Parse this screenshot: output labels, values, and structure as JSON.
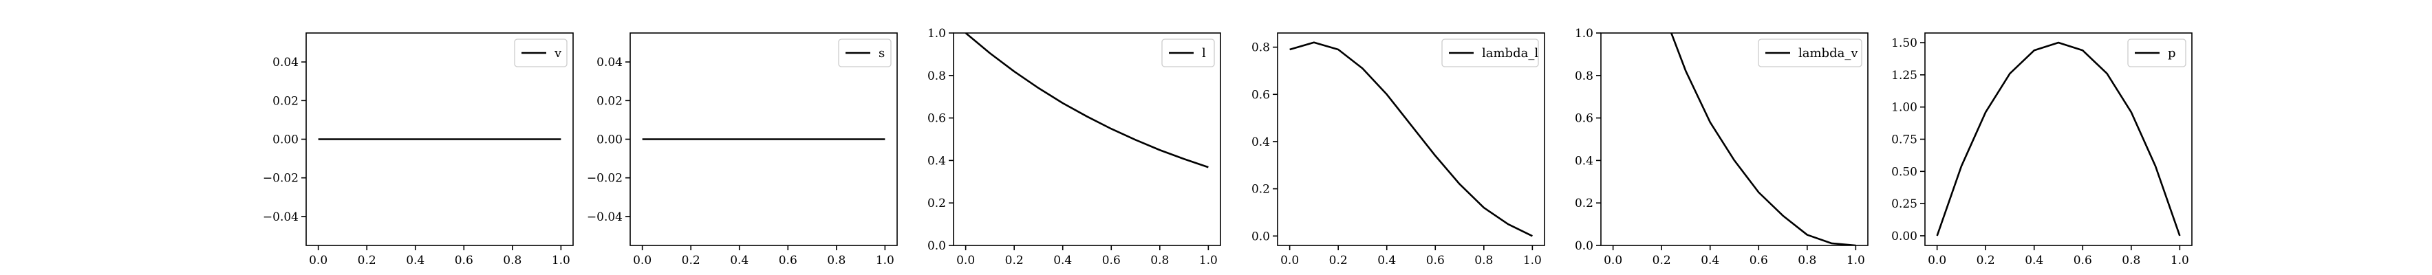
{
  "figure": {
    "line_color": "#000000"
  },
  "chart_data": [
    {
      "type": "line",
      "xlim": [
        -0.05,
        1.05
      ],
      "ylim": [
        -0.055,
        0.055
      ],
      "xticks": [
        0.0,
        0.2,
        0.4,
        0.6,
        0.8,
        1.0
      ],
      "xtick_labels": [
        "0.0",
        "0.2",
        "0.4",
        "0.6",
        "0.8",
        "1.0"
      ],
      "yticks": [
        -0.04,
        -0.02,
        0.0,
        0.02,
        0.04
      ],
      "ytick_labels": [
        "−0.04",
        "−0.02",
        "0.00",
        "0.02",
        "0.04"
      ],
      "legend": "top-right",
      "series": [
        {
          "name": "v",
          "x": [
            0.0,
            0.2,
            0.4,
            0.6,
            0.8,
            1.0
          ],
          "y": [
            0.0,
            0.0,
            0.0,
            0.0,
            0.0,
            0.0
          ]
        }
      ]
    },
    {
      "type": "line",
      "xlim": [
        -0.05,
        1.05
      ],
      "ylim": [
        -0.055,
        0.055
      ],
      "xticks": [
        0.0,
        0.2,
        0.4,
        0.6,
        0.8,
        1.0
      ],
      "xtick_labels": [
        "0.0",
        "0.2",
        "0.4",
        "0.6",
        "0.8",
        "1.0"
      ],
      "yticks": [
        -0.04,
        -0.02,
        0.0,
        0.02,
        0.04
      ],
      "ytick_labels": [
        "−0.04",
        "−0.02",
        "0.00",
        "0.02",
        "0.04"
      ],
      "legend": "top-right",
      "series": [
        {
          "name": "s",
          "x": [
            0.0,
            0.2,
            0.4,
            0.6,
            0.8,
            1.0
          ],
          "y": [
            0.0,
            0.0,
            0.0,
            0.0,
            0.0,
            0.0
          ]
        }
      ]
    },
    {
      "type": "line",
      "xlim": [
        -0.05,
        1.05
      ],
      "ylim": [
        0.0,
        1.0
      ],
      "xticks": [
        0.0,
        0.2,
        0.4,
        0.6,
        0.8,
        1.0
      ],
      "xtick_labels": [
        "0.0",
        "0.2",
        "0.4",
        "0.6",
        "0.8",
        "1.0"
      ],
      "yticks": [
        0.0,
        0.2,
        0.4,
        0.6,
        0.8,
        1.0
      ],
      "ytick_labels": [
        "0.0",
        "0.2",
        "0.4",
        "0.6",
        "0.8",
        "1.0"
      ],
      "legend": "top-right",
      "series": [
        {
          "name": "l",
          "x": [
            0.0,
            0.1,
            0.2,
            0.3,
            0.4,
            0.5,
            0.6,
            0.7,
            0.8,
            0.9,
            1.0
          ],
          "y": [
            1.0,
            0.905,
            0.819,
            0.741,
            0.67,
            0.607,
            0.549,
            0.497,
            0.449,
            0.407,
            0.368
          ]
        }
      ]
    },
    {
      "type": "line",
      "xlim": [
        -0.05,
        1.05
      ],
      "ylim": [
        -0.04,
        0.86
      ],
      "xticks": [
        0.0,
        0.2,
        0.4,
        0.6,
        0.8,
        1.0
      ],
      "xtick_labels": [
        "0.0",
        "0.2",
        "0.4",
        "0.6",
        "0.8",
        "1.0"
      ],
      "yticks": [
        0.0,
        0.2,
        0.4,
        0.6,
        0.8
      ],
      "ytick_labels": [
        "0.0",
        "0.2",
        "0.4",
        "0.6",
        "0.8"
      ],
      "legend": "top-right",
      "series": [
        {
          "name": "lambda_l",
          "x": [
            0.0,
            0.1,
            0.2,
            0.3,
            0.4,
            0.5,
            0.6,
            0.7,
            0.8,
            0.9,
            1.0
          ],
          "y": [
            0.79,
            0.82,
            0.79,
            0.71,
            0.6,
            0.47,
            0.34,
            0.22,
            0.12,
            0.05,
            0.0
          ]
        }
      ]
    },
    {
      "type": "line",
      "xlim": [
        -0.05,
        1.05
      ],
      "ylim": [
        0.0,
        1.0
      ],
      "xticks": [
        0.0,
        0.2,
        0.4,
        0.6,
        0.8,
        1.0
      ],
      "xtick_labels": [
        "0.0",
        "0.2",
        "0.4",
        "0.6",
        "0.8",
        "1.0"
      ],
      "yticks": [
        0.0,
        0.2,
        0.4,
        0.6,
        0.8,
        1.0
      ],
      "ytick_labels": [
        "0.0",
        "0.2",
        "0.4",
        "0.6",
        "0.8",
        "1.0"
      ],
      "legend": "top-right",
      "series": [
        {
          "name": "lambda_v",
          "x": [
            0.24,
            0.3,
            0.4,
            0.5,
            0.6,
            0.7,
            0.8,
            0.9,
            1.0
          ],
          "y": [
            1.0,
            0.82,
            0.58,
            0.4,
            0.25,
            0.14,
            0.05,
            0.01,
            0.0
          ]
        }
      ]
    },
    {
      "type": "line",
      "xlim": [
        -0.05,
        1.05
      ],
      "ylim": [
        -0.075,
        1.575
      ],
      "xticks": [
        0.0,
        0.2,
        0.4,
        0.6,
        0.8,
        1.0
      ],
      "xtick_labels": [
        "0.0",
        "0.2",
        "0.4",
        "0.6",
        "0.8",
        "1.0"
      ],
      "yticks": [
        0.0,
        0.25,
        0.5,
        0.75,
        1.0,
        1.25,
        1.5
      ],
      "ytick_labels": [
        "0.00",
        "0.25",
        "0.50",
        "0.75",
        "1.00",
        "1.25",
        "1.50"
      ],
      "legend": "top-right",
      "series": [
        {
          "name": "p",
          "x": [
            0.0,
            0.1,
            0.2,
            0.3,
            0.4,
            0.5,
            0.6,
            0.7,
            0.8,
            0.9,
            1.0
          ],
          "y": [
            0.0,
            0.54,
            0.96,
            1.26,
            1.44,
            1.5,
            1.44,
            1.26,
            0.96,
            0.54,
            0.0
          ]
        }
      ]
    }
  ]
}
